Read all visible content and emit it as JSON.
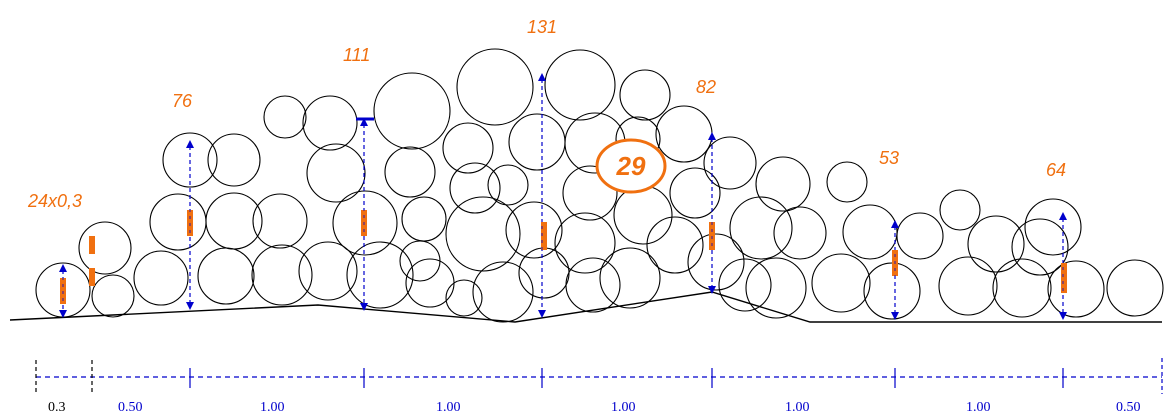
{
  "diagram": {
    "colors": {
      "orange": "#f07010",
      "blue": "#0000cc",
      "black": "#000000"
    },
    "height_labels": [
      "24x0,3",
      "76",
      "111",
      "131",
      "82",
      "53",
      "64"
    ],
    "highlight_label": "29",
    "spacing_labels": [
      "0.3",
      "0.50",
      "1.00",
      "1.00",
      "1.00",
      "1.00",
      "1.00",
      "0.50"
    ]
  }
}
